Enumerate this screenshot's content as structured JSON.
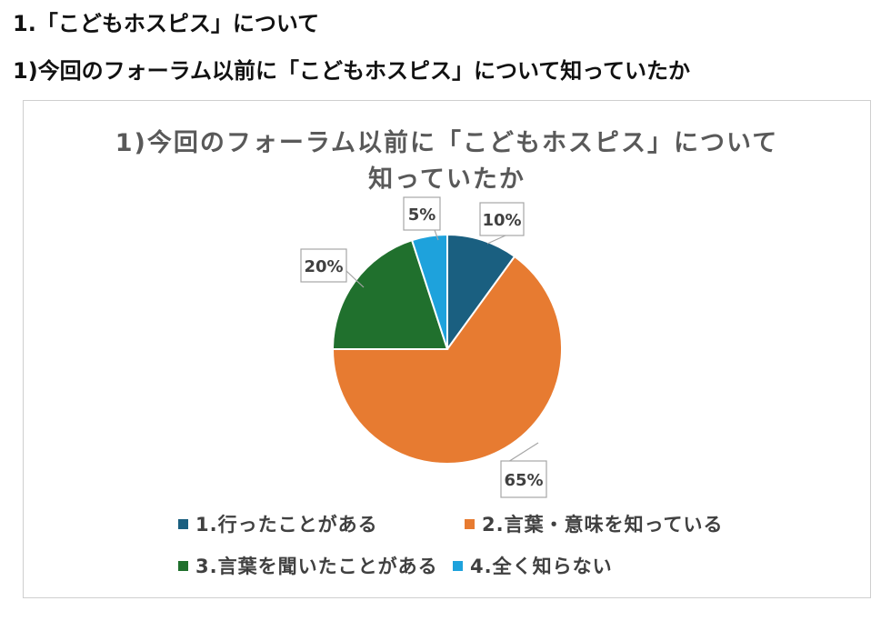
{
  "headings": {
    "section": "1.「こどもホスピス」について",
    "question": "1)今回のフォーラム以前に「こどもホスピス」について知っていたか"
  },
  "chart_data": {
    "type": "pie",
    "title_line1": "1)今回のフォーラム以前に「こどもホスピス」について",
    "title_line2": "知っていたか",
    "legend_position": "bottom",
    "slices": [
      {
        "label": "1.行ったことがある",
        "value": 10,
        "data_label": "10%",
        "color": "#1a5f80"
      },
      {
        "label": "2.言葉・意味を知っている",
        "value": 65,
        "data_label": "65%",
        "color": "#e77b31"
      },
      {
        "label": "3.言葉を聞いたことがある",
        "value": 20,
        "data_label": "20%",
        "color": "#20702d"
      },
      {
        "label": "4.全く知らない",
        "value": 5,
        "data_label": "5%",
        "color": "#1ea2dc"
      }
    ]
  }
}
